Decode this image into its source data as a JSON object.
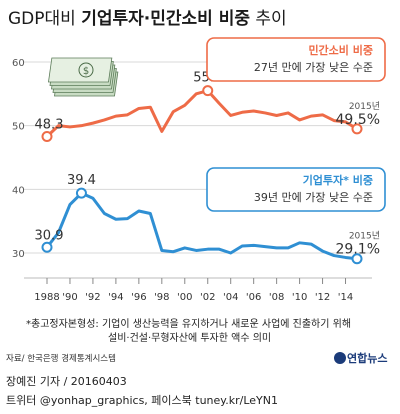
{
  "title": {
    "part1": "GDP대비",
    "part2": "기업투자·민간소비 비중",
    "part3": "추이"
  },
  "colors": {
    "consumption": "#ee6b47",
    "investment": "#2f8fd3",
    "grid": "#d8d8d8",
    "background": "#ffffff",
    "text": "#333333"
  },
  "icon": "money-stack-icon",
  "chart_data": {
    "type": "line",
    "x_ticks": [
      "1988",
      "'90",
      "'92",
      "'94",
      "'96",
      "'98",
      "'00",
      "'02",
      "'04",
      "'06",
      "'08",
      "'10",
      "'12",
      "'14"
    ],
    "x_tick_values": [
      1988,
      1990,
      1992,
      1994,
      1996,
      1998,
      2000,
      2002,
      2004,
      2006,
      2008,
      2010,
      2012,
      2014
    ],
    "xlim": [
      1988,
      2015
    ],
    "ylim": [
      30,
      60
    ],
    "y_ticks": [
      30,
      40,
      50,
      60
    ],
    "x": [
      1988,
      1989,
      1990,
      1991,
      1992,
      1993,
      1994,
      1995,
      1996,
      1997,
      1998,
      1999,
      2000,
      2001,
      2002,
      2003,
      2004,
      2005,
      2006,
      2007,
      2008,
      2009,
      2010,
      2011,
      2012,
      2013,
      2014,
      2015
    ],
    "series": [
      {
        "name": "민간소비 비중",
        "values": [
          48.3,
          50.0,
          49.8,
          50.0,
          50.4,
          50.9,
          51.5,
          51.7,
          52.7,
          52.9,
          49.1,
          52.2,
          53.2,
          55.0,
          55.5,
          53.5,
          51.6,
          52.1,
          52.3,
          52.0,
          51.6,
          52.0,
          50.9,
          51.5,
          51.7,
          50.8,
          50.6,
          49.5
        ],
        "highlights": [
          {
            "x": 1988,
            "label": "48.3"
          },
          {
            "x": 2002,
            "label": "55.5"
          },
          {
            "x": 2015,
            "label": "49.5%",
            "year": "2015년"
          }
        ],
        "box": {
          "title": "민간소비 비중",
          "text": "27년 만에 가장 낮은 수준"
        }
      },
      {
        "name": "기업투자* 비중",
        "values": [
          30.9,
          33.2,
          37.6,
          39.4,
          38.6,
          36.2,
          35.3,
          35.4,
          36.6,
          36.2,
          30.4,
          30.2,
          30.8,
          30.4,
          30.6,
          30.6,
          30.0,
          31.1,
          31.2,
          31.0,
          30.8,
          30.8,
          31.6,
          31.4,
          30.3,
          29.6,
          29.3,
          29.1
        ],
        "highlights": [
          {
            "x": 1988,
            "label": "30.9"
          },
          {
            "x": 1991,
            "label": "39.4"
          },
          {
            "x": 2015,
            "label": "29.1%",
            "year": "2015년"
          }
        ],
        "box": {
          "title": "기업투자* 비중",
          "text": "39년 만에 가장 낮은 수준"
        }
      }
    ]
  },
  "footnote": {
    "prefix": "*총고정자본형성:",
    "line1": "기업이 생산능력을 유지하거나 새로운 사업에 진출하기 위해",
    "line2": "설비·건설·무형자산에 투자한 액수 의미"
  },
  "source": "자료/ 한국은행 경제통계시스템",
  "credit": "장예진 기자 / 20160403",
  "twitter": "트위터 @yonhap_graphics, 페이스북 tuney.kr/LeYN1",
  "logo": "연합뉴스"
}
